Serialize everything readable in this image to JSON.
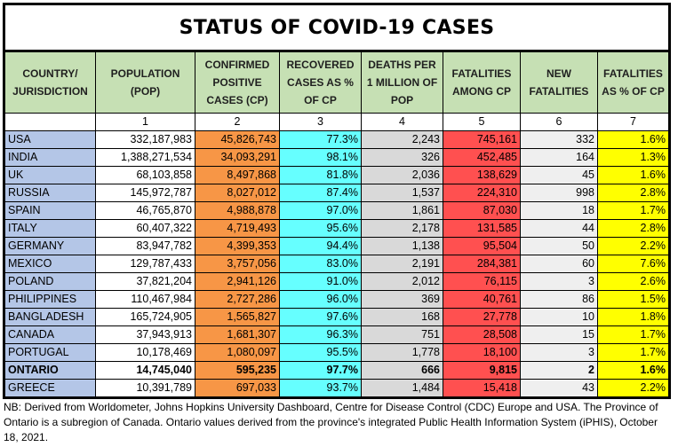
{
  "title": "STATUS OF COVID-19 CASES",
  "headers": [
    "COUNTRY/ JURISDICTION",
    "POPULATION (POP)",
    "CONFIRMED POSITIVE CASES (CP)",
    "RECOVERED CASES AS % OF CP",
    "DEATHS PER 1 MILLION OF POP",
    "FATALITIES AMONG CP",
    "NEW FATALITIES",
    "FATALITIES AS % OF CP"
  ],
  "column_numbers": [
    "",
    "1",
    "2",
    "3",
    "4",
    "5",
    "6",
    "7"
  ],
  "colors": {
    "country": "#b4c6e7",
    "confirmed": "#f79646",
    "recovered": "#66ffff",
    "deaths_per_million": "#d9d9d9",
    "fatalities": "#ff5050",
    "new_fatalities": "#efefef",
    "fatality_pct": "#ffff00",
    "header": "#c6e0b4"
  },
  "rows": [
    [
      "USA",
      "332,187,983",
      "45,826,743",
      "77.3%",
      "2,243",
      "745,161",
      "332",
      "1.6%"
    ],
    [
      "INDIA",
      "1,388,271,534",
      "34,093,291",
      "98.1%",
      "326",
      "452,485",
      "164",
      "1.3%"
    ],
    [
      "UK",
      "68,103,858",
      "8,497,868",
      "81.8%",
      "2,036",
      "138,629",
      "45",
      "1.6%"
    ],
    [
      "RUSSIA",
      "145,972,787",
      "8,027,012",
      "87.4%",
      "1,537",
      "224,310",
      "998",
      "2.8%"
    ],
    [
      "SPAIN",
      "46,765,870",
      "4,988,878",
      "97.0%",
      "1,861",
      "87,030",
      "18",
      "1.7%"
    ],
    [
      "ITALY",
      "60,407,322",
      "4,719,493",
      "95.6%",
      "2,178",
      "131,585",
      "44",
      "2.8%"
    ],
    [
      "GERMANY",
      "83,947,782",
      "4,399,353",
      "94.4%",
      "1,138",
      "95,504",
      "50",
      "2.2%"
    ],
    [
      "MEXICO",
      "129,787,433",
      "3,757,056",
      "83.0%",
      "2,191",
      "284,381",
      "60",
      "7.6%"
    ],
    [
      "POLAND",
      "37,821,204",
      "2,941,126",
      "91.0%",
      "2,012",
      "76,115",
      "3",
      "2.6%"
    ],
    [
      "PHILIPPINES",
      "110,467,984",
      "2,727,286",
      "96.0%",
      "369",
      "40,761",
      "86",
      "1.5%"
    ],
    [
      "BANGLADESH",
      "165,724,905",
      "1,565,827",
      "97.6%",
      "168",
      "27,778",
      "10",
      "1.8%"
    ],
    [
      "CANADA",
      "37,943,913",
      "1,681,307",
      "96.3%",
      "751",
      "28,508",
      "15",
      "1.7%"
    ],
    [
      "PORTUGAL",
      "10,178,469",
      "1,080,097",
      "95.5%",
      "1,778",
      "18,100",
      "3",
      "1.7%"
    ],
    [
      "ONTARIO",
      "14,745,040",
      "595,235",
      "97.7%",
      "666",
      "9,815",
      "2",
      "1.6%"
    ],
    [
      "GREECE",
      "10,391,789",
      "697,033",
      "93.7%",
      "1,484",
      "15,418",
      "43",
      "2.2%"
    ]
  ],
  "bold_row": "ONTARIO",
  "footnote": "NB: Derived from Worldometer, Johns Hopkins University Dashboard, Centre for Disease Control (CDC) Europe and USA. The Province of Ontario is a subregion of Canada. Ontario values derived from the province's integrated Public Health Information System (iPHIS), October 18, 2021."
}
